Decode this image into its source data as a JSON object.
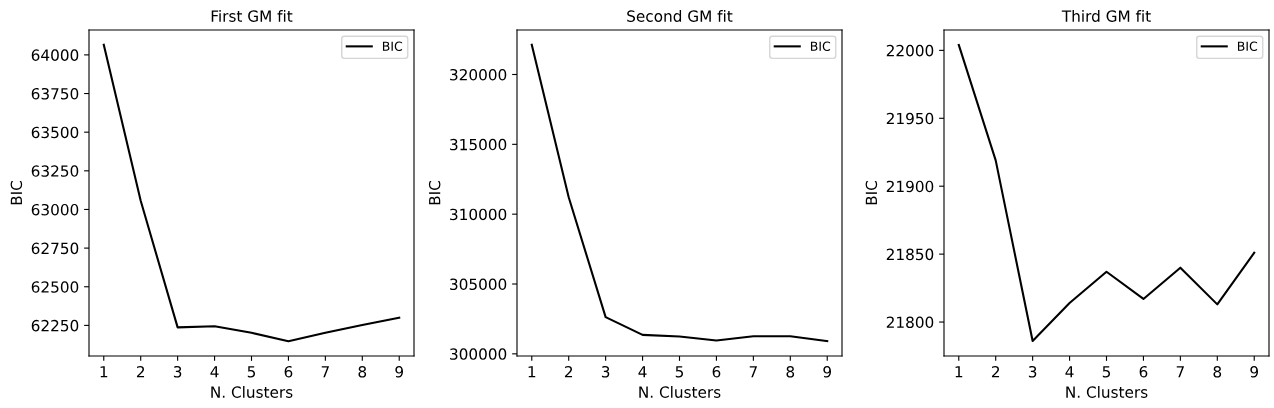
{
  "chart_data": [
    {
      "type": "line",
      "title": "First GM fit",
      "xlabel": "N. Clusters",
      "ylabel": "BIC",
      "x": [
        1,
        2,
        3,
        4,
        5,
        6,
        7,
        8,
        9
      ],
      "series": [
        {
          "name": "BIC",
          "color": "#000000",
          "values": [
            64065,
            63056,
            62237,
            62245,
            62202,
            62148,
            62202,
            62252,
            62300
          ]
        }
      ],
      "xlim": [
        0.6,
        9.4
      ],
      "xticks": [
        1,
        2,
        3,
        4,
        5,
        6,
        7,
        8,
        9
      ],
      "ylim": [
        62052,
        64161
      ],
      "yticks": [
        62250,
        62500,
        62750,
        63000,
        63250,
        63500,
        63750,
        64000
      ],
      "legend": "top right",
      "grid": false
    },
    {
      "type": "line",
      "title": "Second GM fit",
      "xlabel": "N. Clusters",
      "ylabel": "BIC",
      "x": [
        1,
        2,
        3,
        4,
        5,
        6,
        7,
        8,
        9
      ],
      "series": [
        {
          "name": "BIC",
          "color": "#000000",
          "values": [
            322124,
            311216,
            302626,
            301361,
            301241,
            300955,
            301265,
            301265,
            300907
          ]
        }
      ],
      "xlim": [
        0.6,
        9.4
      ],
      "xticks": [
        1,
        2,
        3,
        4,
        5,
        6,
        7,
        8,
        9
      ],
      "ylim": [
        299846,
        323185
      ],
      "yticks": [
        300000,
        305000,
        310000,
        315000,
        320000
      ],
      "legend": "top right",
      "grid": false
    },
    {
      "type": "line",
      "title": "Third GM fit",
      "xlabel": "N. Clusters",
      "ylabel": "BIC",
      "x": [
        1,
        2,
        3,
        4,
        5,
        6,
        7,
        8,
        9
      ],
      "series": [
        {
          "name": "BIC",
          "color": "#000000",
          "values": [
            22004,
            21919,
            21786,
            21814,
            21837,
            21817,
            21840,
            21813,
            21851
          ]
        }
      ],
      "xlim": [
        0.6,
        9.4
      ],
      "xticks": [
        1,
        2,
        3,
        4,
        5,
        6,
        7,
        8,
        9
      ],
      "ylim": [
        21775,
        22015
      ],
      "yticks": [
        21800,
        21850,
        21900,
        21950,
        22000
      ],
      "legend": "top right",
      "grid": false
    }
  ]
}
